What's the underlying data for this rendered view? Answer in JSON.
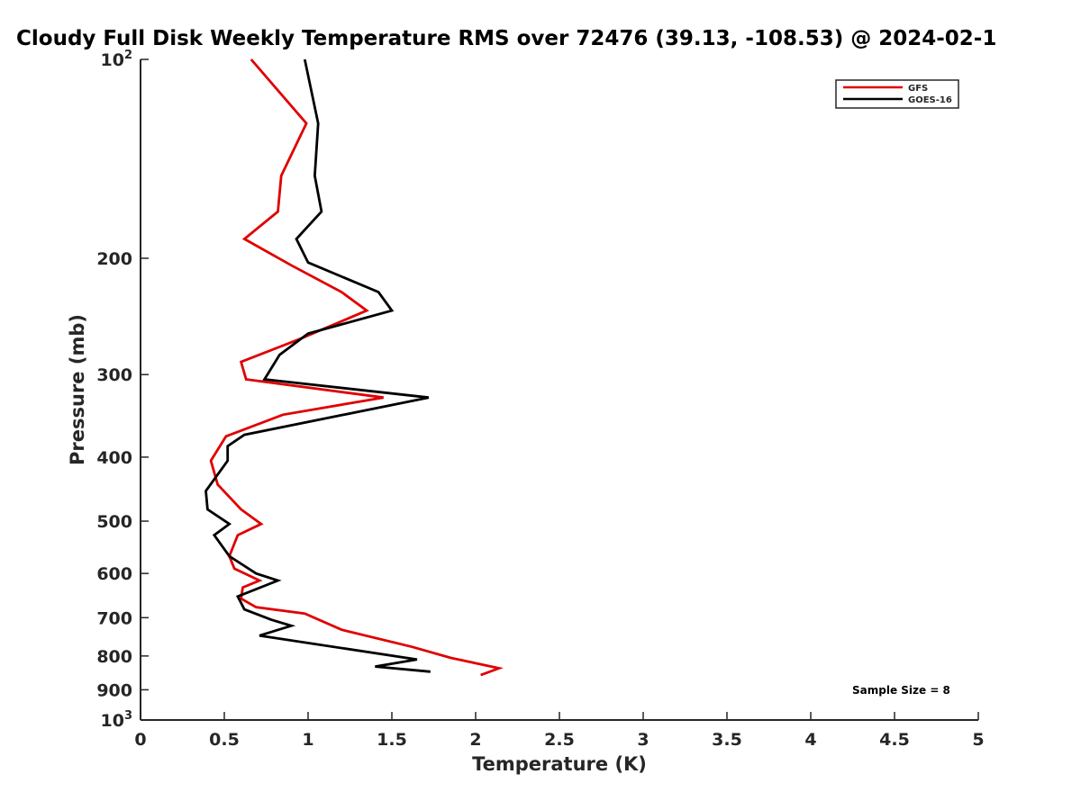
{
  "chart_data": {
    "type": "line",
    "title": "Cloudy Full Disk Weekly Temperature RMS over 72476 (39.13, -108.53) @ 2024-02-1",
    "xlabel": "Temperature (K)",
    "ylabel": "Pressure (mb)",
    "xlim": [
      0,
      5
    ],
    "ylim": [
      1000,
      100
    ],
    "yscale": "log",
    "grid": false,
    "legend_position": "top-right",
    "x_ticks": [
      "0",
      "0.5",
      "1",
      "1.5",
      "2",
      "2.5",
      "3",
      "3.5",
      "4",
      "4.5",
      "5"
    ],
    "x_tick_values": [
      0,
      0.5,
      1,
      1.5,
      2,
      2.5,
      3,
      3.5,
      4,
      4.5,
      5
    ],
    "y_ticks": [
      {
        "value": 100,
        "base": "10",
        "exp": "2"
      },
      {
        "value": 200,
        "label": "200"
      },
      {
        "value": 300,
        "label": "300"
      },
      {
        "value": 400,
        "label": "400"
      },
      {
        "value": 500,
        "label": "500"
      },
      {
        "value": 600,
        "label": "600"
      },
      {
        "value": 700,
        "label": "700"
      },
      {
        "value": 800,
        "label": "800"
      },
      {
        "value": 900,
        "label": "900"
      },
      {
        "value": 1000,
        "base": "10",
        "exp": "3"
      }
    ],
    "annotation": "Sample Size = 8",
    "series": [
      {
        "name": "GFS",
        "color": "#e00000",
        "points": [
          [
            0.66,
            100
          ],
          [
            0.99,
            125
          ],
          [
            0.84,
            150
          ],
          [
            0.82,
            170
          ],
          [
            0.62,
            187
          ],
          [
            0.9,
            205
          ],
          [
            1.2,
            225
          ],
          [
            1.35,
            240
          ],
          [
            0.95,
            265
          ],
          [
            0.6,
            287
          ],
          [
            0.63,
            305
          ],
          [
            1.45,
            325
          ],
          [
            0.85,
            345
          ],
          [
            0.51,
            372
          ],
          [
            0.42,
            405
          ],
          [
            0.46,
            440
          ],
          [
            0.6,
            480
          ],
          [
            0.72,
            505
          ],
          [
            0.58,
            525
          ],
          [
            0.53,
            565
          ],
          [
            0.56,
            590
          ],
          [
            0.71,
            615
          ],
          [
            0.61,
            630
          ],
          [
            0.6,
            655
          ],
          [
            0.69,
            675
          ],
          [
            0.98,
            690
          ],
          [
            1.2,
            730
          ],
          [
            1.62,
            775
          ],
          [
            1.85,
            805
          ],
          [
            2.14,
            835
          ],
          [
            2.03,
            855
          ]
        ]
      },
      {
        "name": "GOES-16",
        "color": "#000000",
        "points": [
          [
            0.98,
            100
          ],
          [
            1.06,
            125
          ],
          [
            1.04,
            150
          ],
          [
            1.08,
            170
          ],
          [
            0.93,
            187
          ],
          [
            1.0,
            203
          ],
          [
            1.42,
            225
          ],
          [
            1.5,
            240
          ],
          [
            1.0,
            260
          ],
          [
            0.83,
            280
          ],
          [
            0.74,
            305
          ],
          [
            1.72,
            325
          ],
          [
            0.62,
            370
          ],
          [
            0.52,
            385
          ],
          [
            0.52,
            405
          ],
          [
            0.39,
            450
          ],
          [
            0.4,
            480
          ],
          [
            0.53,
            505
          ],
          [
            0.44,
            525
          ],
          [
            0.53,
            565
          ],
          [
            0.69,
            600
          ],
          [
            0.82,
            615
          ],
          [
            0.58,
            650
          ],
          [
            0.62,
            680
          ],
          [
            0.78,
            705
          ],
          [
            0.9,
            720
          ],
          [
            0.71,
            745
          ],
          [
            1.65,
            810
          ],
          [
            1.4,
            830
          ],
          [
            1.73,
            845
          ]
        ]
      }
    ]
  }
}
